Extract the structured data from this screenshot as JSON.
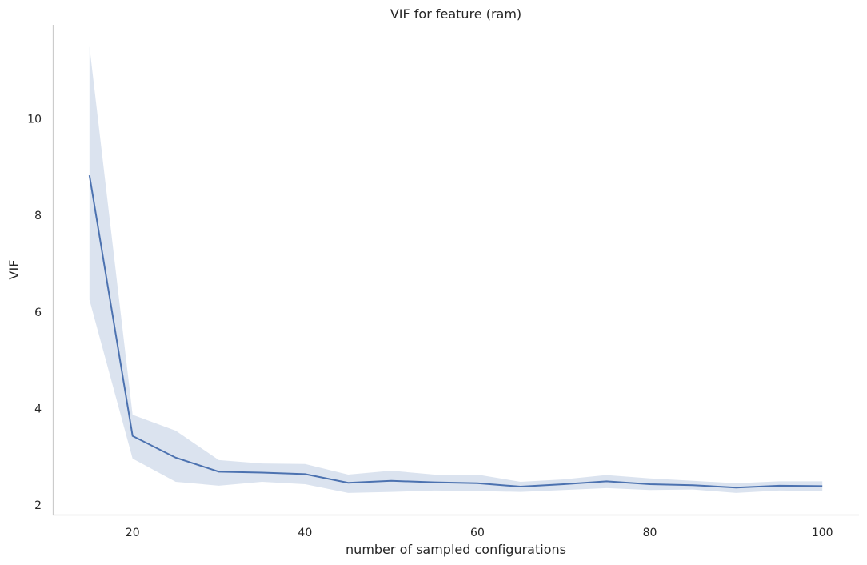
{
  "chart_data": {
    "type": "line",
    "title": "VIF for feature (ram)",
    "xlabel": "number of sampled configurations",
    "ylabel": "VIF",
    "xlim": [
      10.75,
      104.25
    ],
    "ylim": [
      1.8,
      11.95
    ],
    "xticks": [
      20,
      40,
      60,
      80,
      100
    ],
    "yticks": [
      2,
      4,
      6,
      8,
      10
    ],
    "grid": false,
    "series": [
      {
        "color": "#4c72b0",
        "x": [
          15,
          20,
          25,
          30,
          35,
          40,
          45,
          50,
          55,
          60,
          65,
          70,
          75,
          80,
          85,
          90,
          95,
          100
        ],
        "y": [
          8.83,
          3.43,
          2.98,
          2.69,
          2.67,
          2.64,
          2.46,
          2.5,
          2.47,
          2.45,
          2.38,
          2.43,
          2.49,
          2.43,
          2.41,
          2.36,
          2.4,
          2.39
        ],
        "ci_lower": [
          6.25,
          2.96,
          2.48,
          2.4,
          2.48,
          2.43,
          2.25,
          2.27,
          2.3,
          2.29,
          2.27,
          2.31,
          2.35,
          2.31,
          2.32,
          2.25,
          2.3,
          2.29
        ],
        "ci_upper": [
          11.5,
          3.87,
          3.54,
          2.93,
          2.86,
          2.85,
          2.63,
          2.71,
          2.63,
          2.63,
          2.48,
          2.53,
          2.62,
          2.55,
          2.5,
          2.45,
          2.49,
          2.49
        ],
        "band_color": "#4c72b0",
        "band_opacity": 0.2
      }
    ]
  }
}
